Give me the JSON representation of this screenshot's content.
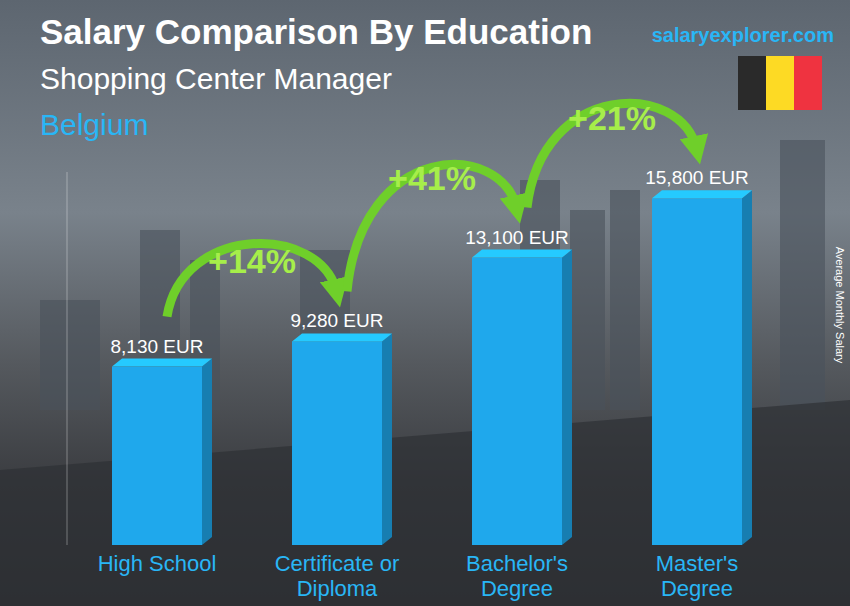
{
  "chart_data": {
    "type": "bar",
    "title": "Salary Comparison By Education",
    "subtitle": "Shopping Center Manager",
    "country": "Belgium",
    "source": "salaryexplorer.com",
    "y_label": "Average Monthly Salary",
    "categories": [
      "High School",
      "Certificate or Diploma",
      "Bachelor's Degree",
      "Master's Degree"
    ],
    "values": [
      8130,
      9280,
      13100,
      15800
    ],
    "value_labels": [
      "8,130 EUR",
      "9,280 EUR",
      "13,100 EUR",
      "15,800 EUR"
    ],
    "data_labels": true,
    "color": "#1fa8ec",
    "ylim": [
      0,
      17000
    ],
    "yticks": [],
    "tick_labels": "x",
    "grid": false,
    "annotations": [
      "+14%",
      "+41%",
      "+21%"
    ]
  }
}
